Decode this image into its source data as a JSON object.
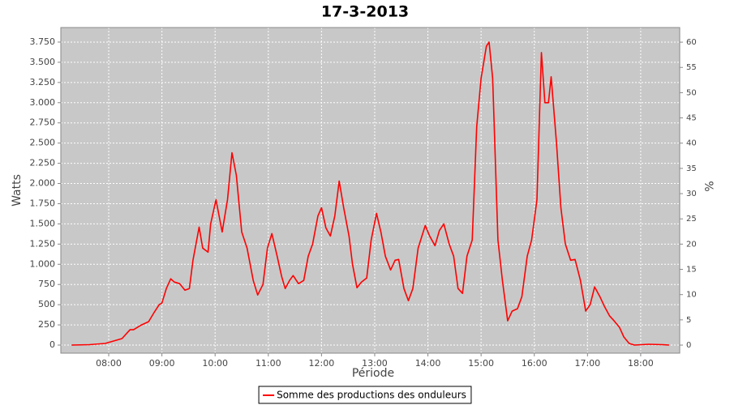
{
  "chart_data": {
    "type": "line",
    "title": "17-3-2013",
    "x_label": "Période",
    "y_label": "Watts",
    "y2_label": "%",
    "x": [
      "07:18",
      "07:38",
      "07:56",
      "08:15",
      "08:24",
      "08:28",
      "08:37",
      "08:45",
      "08:51",
      "08:57",
      "09:00",
      "09:05",
      "09:10",
      "09:14",
      "09:20",
      "09:26",
      "09:31",
      "09:35",
      "09:42",
      "09:46",
      "09:52",
      "09:55",
      "10:01",
      "10:08",
      "10:14",
      "10:19",
      "10:24",
      "10:30",
      "10:36",
      "10:43",
      "10:48",
      "10:54",
      "10:59",
      "11:04",
      "11:10",
      "11:15",
      "11:19",
      "11:24",
      "11:28",
      "11:34",
      "11:40",
      "11:45",
      "11:50",
      "11:56",
      "12:00",
      "12:05",
      "12:10",
      "12:15",
      "12:20",
      "12:25",
      "12:31",
      "12:35",
      "12:40",
      "12:45",
      "12:51",
      "12:56",
      "13:02",
      "13:07",
      "13:12",
      "13:18",
      "13:23",
      "13:27",
      "13:33",
      "13:38",
      "13:43",
      "13:49",
      "13:57",
      "14:02",
      "14:08",
      "14:13",
      "14:18",
      "14:24",
      "14:29",
      "14:34",
      "14:39",
      "14:44",
      "14:50",
      "14:55",
      "15:00",
      "15:06",
      "15:09",
      "15:13",
      "15:19",
      "15:24",
      "15:30",
      "15:35",
      "15:41",
      "15:46",
      "15:52",
      "15:57",
      "16:03",
      "16:08",
      "16:12",
      "16:16",
      "16:19",
      "16:25",
      "16:30",
      "16:35",
      "16:41",
      "16:46",
      "16:52",
      "16:58",
      "17:03",
      "17:08",
      "17:14",
      "17:19",
      "17:25",
      "17:30",
      "17:36",
      "17:41",
      "17:47",
      "17:53",
      "18:09",
      "18:25",
      "18:32"
    ],
    "series": [
      {
        "name": "Somme des productions des onduleurs",
        "color": "#ff0000",
        "values": [
          0,
          5,
          20,
          80,
          190,
          190,
          250,
          290,
          400,
          500,
          520,
          700,
          820,
          780,
          760,
          680,
          700,
          1050,
          1460,
          1200,
          1150,
          1500,
          1800,
          1400,
          1800,
          2380,
          2100,
          1400,
          1200,
          800,
          620,
          750,
          1200,
          1380,
          1100,
          850,
          700,
          800,
          860,
          760,
          800,
          1100,
          1250,
          1600,
          1700,
          1450,
          1350,
          1600,
          2030,
          1700,
          1350,
          1000,
          710,
          780,
          830,
          1300,
          1630,
          1400,
          1100,
          930,
          1050,
          1060,
          700,
          550,
          700,
          1200,
          1480,
          1350,
          1230,
          1420,
          1500,
          1250,
          1100,
          700,
          640,
          1100,
          1300,
          2700,
          3300,
          3700,
          3750,
          3300,
          1300,
          800,
          300,
          420,
          450,
          600,
          1100,
          1300,
          1800,
          3620,
          3000,
          3000,
          3320,
          2500,
          1700,
          1250,
          1050,
          1060,
          800,
          420,
          500,
          720,
          600,
          480,
          360,
          300,
          220,
          100,
          20,
          0,
          10,
          5,
          0
        ]
      }
    ],
    "xlim": [
      "07:06",
      "18:44"
    ],
    "xticks": [
      "08:00",
      "09:00",
      "10:00",
      "11:00",
      "12:00",
      "13:00",
      "14:00",
      "15:00",
      "16:00",
      "17:00",
      "18:00"
    ],
    "ylim": [
      -100,
      3930
    ],
    "yticks": [
      0,
      250,
      500,
      750,
      {
        "value": 1000,
        "label": "1.000"
      },
      {
        "value": 1250,
        "label": "1.250"
      },
      {
        "value": 1500,
        "label": "1.500"
      },
      {
        "value": 1750,
        "label": "1.750"
      },
      {
        "value": 2000,
        "label": "2.000"
      },
      {
        "value": 2250,
        "label": "2.250"
      },
      {
        "value": 2500,
        "label": "2.500"
      },
      {
        "value": 2750,
        "label": "2.750"
      },
      {
        "value": 3000,
        "label": "3.000"
      },
      {
        "value": 3250,
        "label": "3.250"
      },
      {
        "value": 3500,
        "label": "3.500"
      },
      {
        "value": 3750,
        "label": "3.750"
      }
    ],
    "y2lim": [
      -1.6,
      62.9
    ],
    "y2ticks": [
      0,
      5,
      10,
      15,
      20,
      25,
      30,
      35,
      40,
      45,
      50,
      55,
      60
    ],
    "grid": true,
    "legend": "bottom",
    "background": "#c8c8c8"
  }
}
